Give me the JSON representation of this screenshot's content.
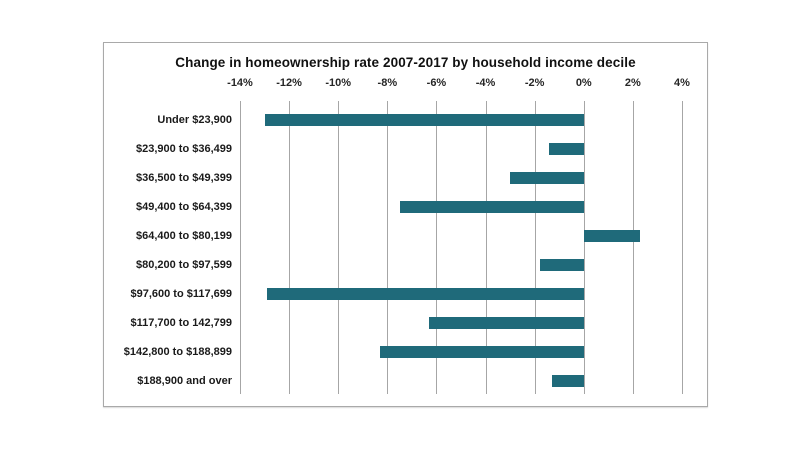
{
  "page": {
    "background_color": "#ffffff",
    "chart_border_color": "#a9a9a9"
  },
  "chart_data": {
    "type": "bar",
    "orientation": "horizontal",
    "title": "Change in homeownership rate 2007-2017 by household income decile",
    "xlabel": "",
    "ylabel": "",
    "xlim": [
      -14,
      4
    ],
    "grid": true,
    "bar_color": "#1f6a7a",
    "grid_color": "#a6a6a6",
    "x_ticks": [
      {
        "label": "-14%",
        "value": -14
      },
      {
        "label": "-12%",
        "value": -12
      },
      {
        "label": "-10%",
        "value": -10
      },
      {
        "label": "-8%",
        "value": -8
      },
      {
        "label": "-6%",
        "value": -6
      },
      {
        "label": "-4%",
        "value": -4
      },
      {
        "label": "-2%",
        "value": -2
      },
      {
        "label": "0%",
        "value": 0
      },
      {
        "label": "2%",
        "value": 2
      },
      {
        "label": "4%",
        "value": 4
      }
    ],
    "categories": [
      "Under $23,900",
      "$23,900 to $36,499",
      "$36,500 to $49,399",
      "$49,400 to $64,399",
      "$64,400 to $80,199",
      "$80,200 to $97,599",
      "$97,600 to $117,699",
      "$117,700 to 142,799",
      "$142,800 to $188,899",
      "$188,900 and over"
    ],
    "values": [
      -13.0,
      -1.4,
      -3.0,
      -7.5,
      2.3,
      -1.8,
      -12.9,
      -6.3,
      -8.3,
      -1.3
    ]
  }
}
